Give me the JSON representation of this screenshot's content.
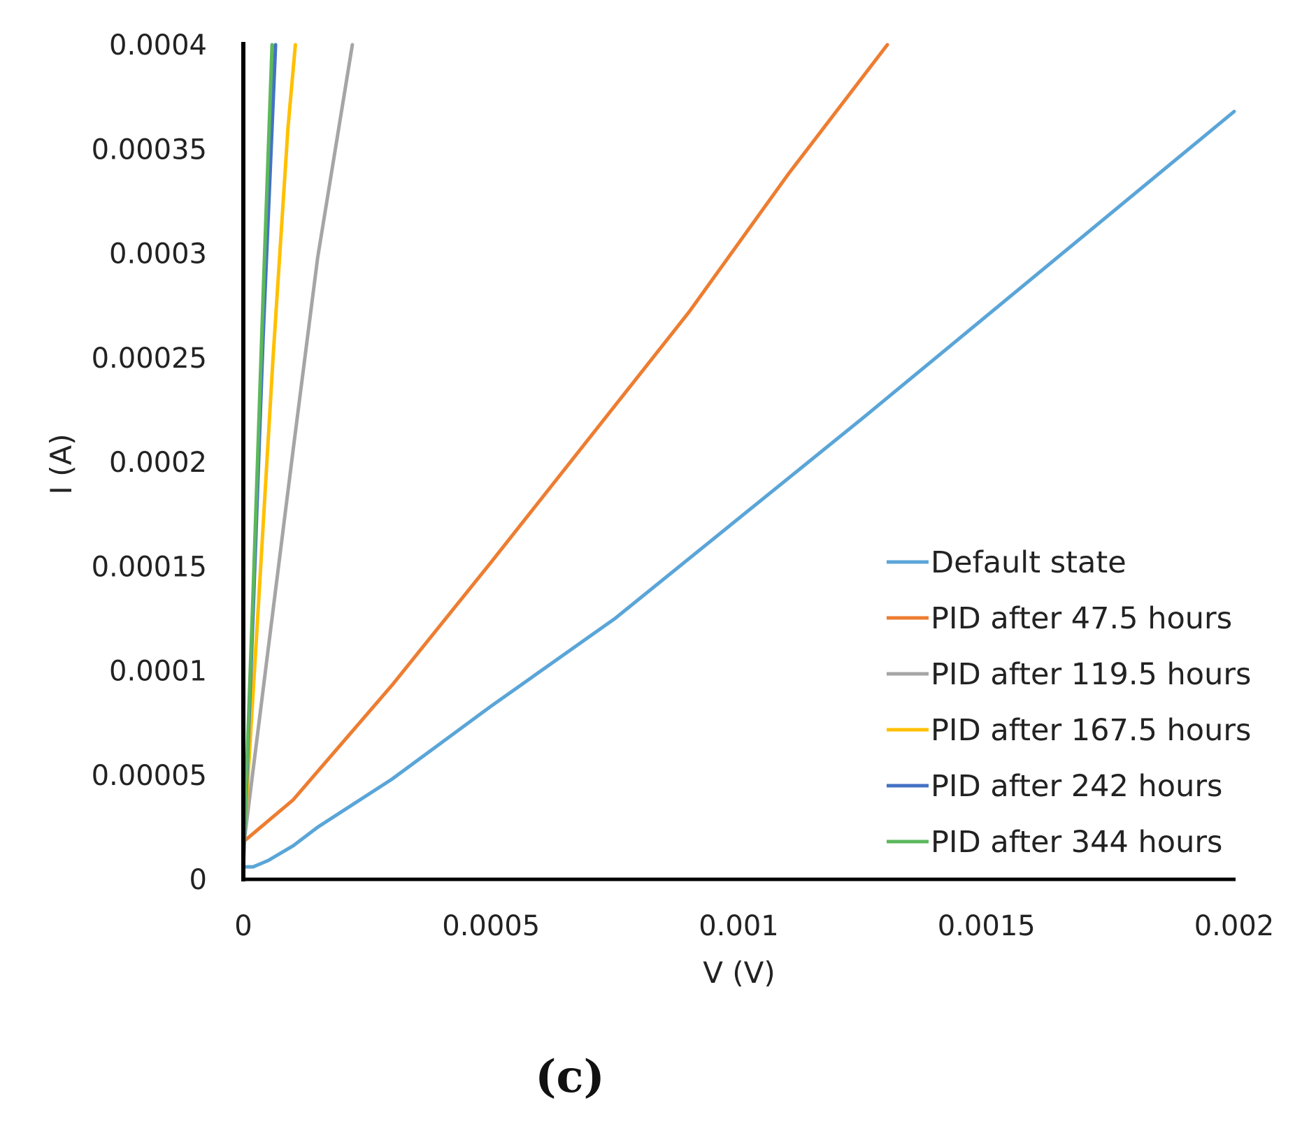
{
  "chart_data": {
    "type": "line",
    "title": "",
    "xlabel": "V (V)",
    "ylabel": "I (A)",
    "xlim": [
      0,
      0.002
    ],
    "ylim": [
      0,
      0.0004
    ],
    "xticks": [
      0,
      0.0005,
      0.001,
      0.0015,
      0.002
    ],
    "xtick_labels": [
      "0",
      "0.0005",
      "0.001",
      "0.0015",
      "0.002"
    ],
    "yticks": [
      0,
      5e-05,
      0.0001,
      0.00015,
      0.0002,
      0.00025,
      0.0003,
      0.00035,
      0.0004
    ],
    "ytick_labels": [
      "0",
      "0.00005",
      "0.0001",
      "0.00015",
      "0.0002",
      "0.00025",
      "0.0003",
      "0.00035",
      "0.0004"
    ],
    "grid": false,
    "legend_position": "bottom-right",
    "panel_label": "(c)",
    "series": [
      {
        "name": "Default state",
        "color": "#5aa5d8",
        "x": [
          0,
          2e-05,
          5e-05,
          0.0001,
          0.00015,
          0.0003,
          0.0005,
          0.00075,
          0.001,
          0.00125,
          0.0015,
          0.00175,
          0.002
        ],
        "y": [
          6e-06,
          6e-06,
          9e-06,
          1.6e-05,
          2.5e-05,
          4.8e-05,
          8.3e-05,
          0.000125,
          0.000173,
          0.000221,
          0.00027,
          0.000319,
          0.000368
        ]
      },
      {
        "name": "PID after 47.5 hours",
        "color": "#ed7d31",
        "x": [
          0,
          0.0001,
          0.0003,
          0.0005,
          0.0007,
          0.0009,
          0.0011,
          0.0013
        ],
        "y": [
          1.8e-05,
          3.8e-05,
          9.3e-05,
          0.000152,
          0.000212,
          0.000272,
          0.000338,
          0.0004
        ]
      },
      {
        "name": "PID after 119.5 hours",
        "color": "#a5a5a5",
        "x": [
          0,
          5e-05,
          0.0001,
          0.00015,
          0.00022
        ],
        "y": [
          1.5e-05,
          0.00011,
          0.000205,
          0.000298,
          0.0004
        ]
      },
      {
        "name": "PID after 167.5 hours",
        "color": "#ffc000",
        "x": [
          0,
          3e-05,
          6e-05,
          9e-05,
          0.000105
        ],
        "y": [
          1.2e-05,
          0.00013,
          0.00025,
          0.00036,
          0.0004
        ]
      },
      {
        "name": "PID after 242 hours",
        "color": "#4472c4",
        "x": [
          0,
          2e-05,
          4e-05,
          6.5e-05
        ],
        "y": [
          5e-06,
          0.00013,
          0.00026,
          0.0004
        ]
      },
      {
        "name": "PID after 344 hours",
        "color": "#5cb85c",
        "x": [
          0,
          2e-05,
          4e-05,
          5.8e-05
        ],
        "y": [
          8e-06,
          0.00014,
          0.00028,
          0.0004
        ]
      }
    ]
  }
}
